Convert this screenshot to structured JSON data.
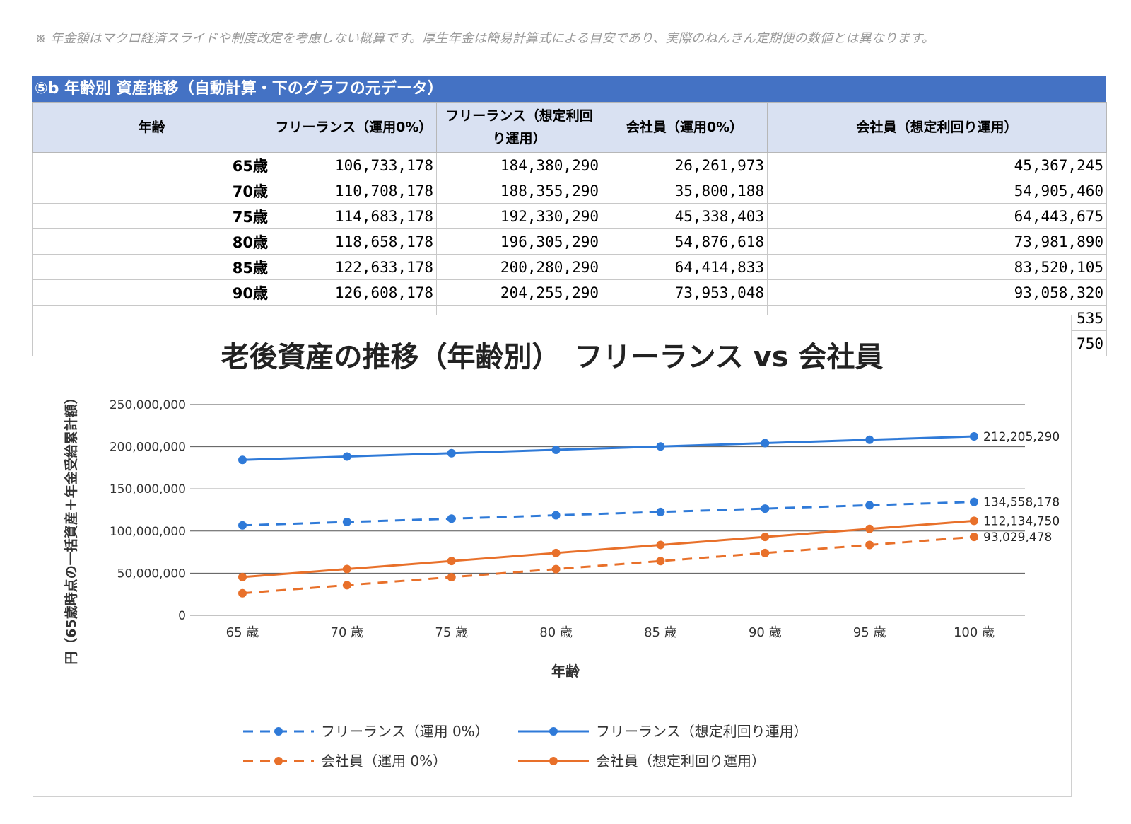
{
  "note": "※ 年金額はマクロ経済スライドや制度改定を考慮しない概算です。厚生年金は簡易計算式による目安であり、実際のねんきん定期便の数値とは異なります。",
  "sheet": {
    "title": "⑤b 年齢別 資産推移（自動計算・下のグラフの元データ）",
    "headers": [
      "年齢",
      "フリーランス（運用0%）",
      "フリーランス（想定利回り運用）",
      "会社員（運用0%）",
      "会社員（想定利回り運用）"
    ],
    "rows": [
      {
        "age": "65歳",
        "c1": "106,733,178",
        "c2": "184,380,290",
        "c3": "26,261,973",
        "c4": "45,367,245"
      },
      {
        "age": "70歳",
        "c1": "110,708,178",
        "c2": "188,355,290",
        "c3": "35,800,188",
        "c4": "54,905,460"
      },
      {
        "age": "75歳",
        "c1": "114,683,178",
        "c2": "192,330,290",
        "c3": "45,338,403",
        "c4": "64,443,675"
      },
      {
        "age": "80歳",
        "c1": "118,658,178",
        "c2": "196,305,290",
        "c3": "54,876,618",
        "c4": "73,981,890"
      },
      {
        "age": "85歳",
        "c1": "122,633,178",
        "c2": "200,280,290",
        "c3": "64,414,833",
        "c4": "83,520,105"
      },
      {
        "age": "90歳",
        "c1": "126,608,178",
        "c2": "204,255,290",
        "c3": "73,953,048",
        "c4": "93,058,320"
      },
      {
        "age": "",
        "c1": "",
        "c2": "",
        "c3": "",
        "c4": "535"
      },
      {
        "age": "",
        "c1": "",
        "c2": "",
        "c3": "",
        "c4": "750"
      }
    ]
  },
  "chart_data": {
    "type": "line",
    "title": "老後資産の推移（年齢別）　フリーランス vs 会社員",
    "xlabel": "年齢",
    "ylabel": "円（65歳時点の一括資産＋年金受給累計額）",
    "categories": [
      "65 歳",
      "70 歳",
      "75 歳",
      "80 歳",
      "85 歳",
      "90 歳",
      "95 歳",
      "100 歳"
    ],
    "ylim": [
      0,
      250000000
    ],
    "yticks": [
      0,
      50000000,
      100000000,
      150000000,
      200000000,
      250000000
    ],
    "ytick_labels": [
      "0",
      "50,000,000",
      "100,000,000",
      "150,000,000",
      "200,000,000",
      "250,000,000"
    ],
    "grid": true,
    "legend": "bottom",
    "series": [
      {
        "name": "フリーランス（運用 0%）",
        "color": "#2f7ad8",
        "dashed": true,
        "values": [
          106733178,
          110708178,
          114683178,
          118658178,
          122633178,
          126608178,
          130583178,
          134558178
        ],
        "end_label": "134,558,178"
      },
      {
        "name": "フリーランス（想定利回り運用）",
        "color": "#2f7ad8",
        "dashed": false,
        "values": [
          184380290,
          188355290,
          192330290,
          196305290,
          200280290,
          204255290,
          208230290,
          212205290
        ],
        "end_label": "212,205,290"
      },
      {
        "name": "会社員（運用 0%）",
        "color": "#e8702a",
        "dashed": true,
        "values": [
          26261973,
          35800188,
          45338403,
          54876618,
          64414833,
          73953048,
          83491263,
          93029478
        ],
        "end_label": "93,029,478"
      },
      {
        "name": "会社員（想定利回り運用）",
        "color": "#e8702a",
        "dashed": false,
        "values": [
          45367245,
          54905460,
          64443675,
          73981890,
          83520105,
          93058320,
          102596535,
          112134750
        ],
        "end_label": "112,134,750"
      }
    ]
  }
}
